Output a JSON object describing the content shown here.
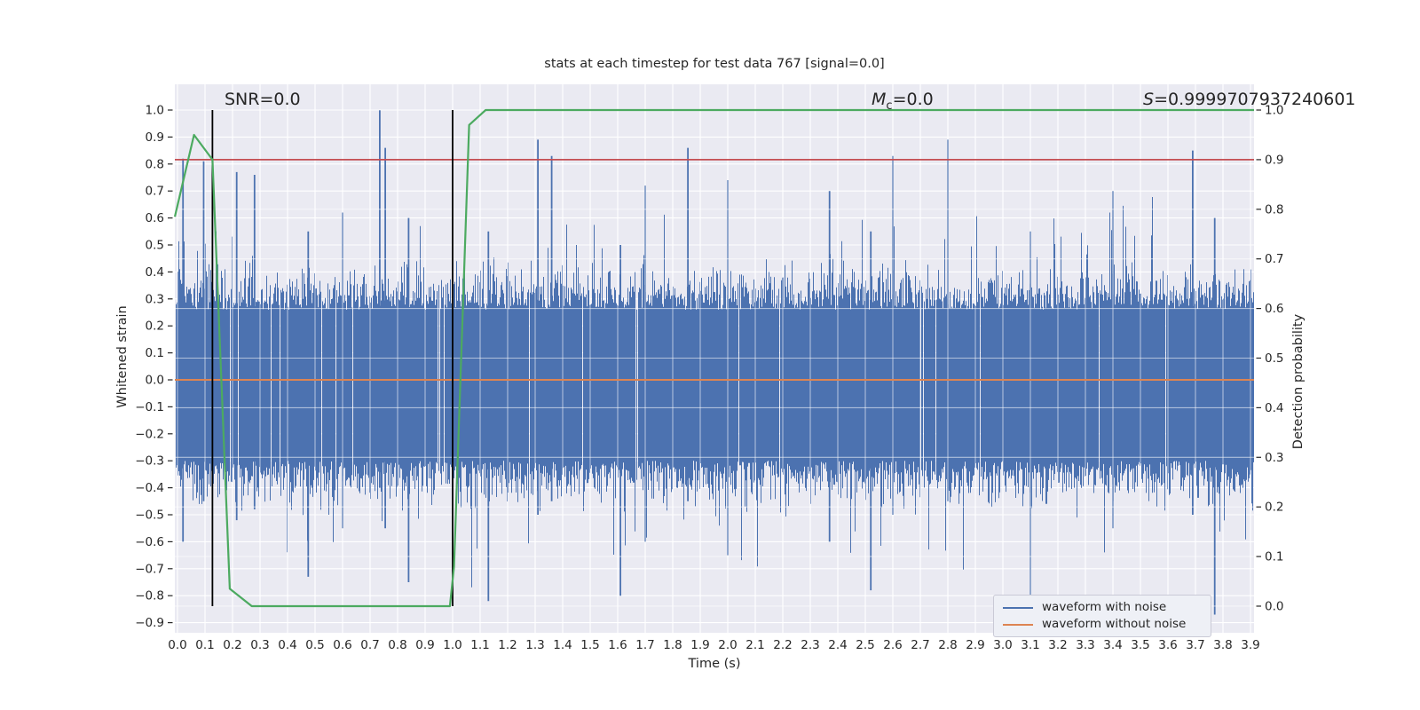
{
  "title": "stats at each timestep for test data 767 [signal=0.0]",
  "annotations": {
    "snr": "SNR=0.0",
    "mc": {
      "var": "M",
      "sub": "c",
      "rest": "=0.0"
    },
    "s": {
      "var": "S",
      "rest": "=0.9999707937240601"
    }
  },
  "axis_labels": {
    "x": "Time (s)",
    "left": "Whitened strain",
    "right": "Detection probability"
  },
  "legend": {
    "items": [
      {
        "label": "waveform with noise",
        "color": "#4c72b0"
      },
      {
        "label": "waveform without noise",
        "color": "#dd8452"
      }
    ]
  },
  "colors": {
    "plot_bg": "#eaeaf2",
    "grid": "#ffffff",
    "text": "#262626",
    "noise": "#4c72b0",
    "clean": "#dd8452",
    "probability": "#4caa60",
    "threshold": "#c44e52",
    "vline": "#000000"
  },
  "chart_data": {
    "type": "line",
    "title": "stats at each timestep for test data 767 [signal=0.0]",
    "xlabel": "Time (s)",
    "ylabel_left": "Whitened strain",
    "ylabel_right": "Detection probability",
    "grid": true,
    "legend_position": "lower right",
    "xlim": [
      -0.0097,
      3.9129
    ],
    "ylim_left": [
      -0.9375,
      1.0954
    ],
    "ylim_right": [
      -0.0537,
      1.0519
    ],
    "x_ticks": [
      0.0,
      0.1,
      0.2,
      0.3,
      0.4,
      0.5,
      0.6,
      0.7,
      0.8,
      0.9,
      1.0,
      1.1,
      1.2,
      1.3,
      1.4,
      1.5,
      1.6,
      1.7,
      1.8,
      1.9,
      2.0,
      2.1,
      2.2,
      2.3,
      2.4,
      2.5,
      2.6,
      2.7,
      2.8,
      2.9,
      3.0,
      3.1,
      3.2,
      3.3,
      3.4,
      3.5,
      3.6,
      3.7,
      3.8,
      3.9
    ],
    "left_ticks": [
      1.0,
      0.9,
      0.8,
      0.7,
      0.6,
      0.5,
      0.4,
      0.3,
      0.2,
      0.1,
      0.0,
      -0.1,
      -0.2,
      -0.3,
      -0.4,
      -0.5,
      -0.6,
      -0.7,
      -0.8,
      -0.9
    ],
    "right_ticks": [
      1.0,
      0.9,
      0.8,
      0.7,
      0.6,
      0.5,
      0.4,
      0.3,
      0.2,
      0.1,
      0.0
    ],
    "series": [
      {
        "name": "waveform with noise",
        "axis": "left",
        "style": "noise",
        "seed": 1337,
        "core": [
          0.26,
          0.3
        ],
        "sigma": [
          0.175,
          0.195
        ],
        "tail_prob": 0.05,
        "tail_extra": 0.32,
        "gap_prob": 0.025,
        "max": 0.98,
        "min": -0.88
      },
      {
        "name": "waveform without noise",
        "axis": "left",
        "style": "hline",
        "value": 0.0
      },
      {
        "name": "detection probability",
        "axis": "right",
        "style": "line",
        "points": [
          [
            -0.0097,
            0.785
          ],
          [
            0.06,
            0.95
          ],
          [
            0.127,
            0.9
          ],
          [
            0.19,
            0.035
          ],
          [
            0.27,
            0.0
          ],
          [
            0.99,
            0.0
          ],
          [
            1.005,
            0.08
          ],
          [
            1.06,
            0.97
          ],
          [
            1.12,
            1.0
          ],
          [
            3.9129,
            1.0
          ]
        ]
      },
      {
        "name": "detection threshold",
        "axis": "right",
        "style": "hline",
        "value": 0.9
      }
    ],
    "vlines": [
      {
        "t": 0.127,
        "p0": 0.0,
        "p1": 1.0
      },
      {
        "t": 1.0,
        "p0": 0.0,
        "p1": 1.0
      }
    ],
    "feature_spikes": [
      [
        0.02,
        0.82,
        -0.6
      ],
      [
        0.095,
        0.81,
        -0.45
      ],
      [
        0.215,
        0.77,
        -0.52
      ],
      [
        0.28,
        0.76,
        -0.48
      ],
      [
        0.475,
        0.55,
        -0.73
      ],
      [
        0.6,
        0.62,
        -0.55
      ],
      [
        0.735,
        1.0,
        -0.4
      ],
      [
        0.755,
        0.86,
        -0.55
      ],
      [
        0.84,
        0.6,
        -0.75
      ],
      [
        1.13,
        0.55,
        -0.82
      ],
      [
        1.31,
        0.89,
        -0.5
      ],
      [
        1.36,
        0.83,
        -0.45
      ],
      [
        1.61,
        0.5,
        -0.8
      ],
      [
        1.7,
        0.72,
        -0.6
      ],
      [
        1.855,
        0.86,
        -0.45
      ],
      [
        2.0,
        0.74,
        -0.65
      ],
      [
        2.37,
        0.7,
        -0.6
      ],
      [
        2.52,
        0.55,
        -0.78
      ],
      [
        2.6,
        0.83,
        -0.5
      ],
      [
        2.8,
        0.89,
        -0.45
      ],
      [
        3.1,
        0.55,
        -0.8
      ],
      [
        3.4,
        0.7,
        -0.55
      ],
      [
        3.69,
        0.85,
        -0.5
      ],
      [
        3.77,
        0.6,
        -0.87
      ]
    ]
  }
}
